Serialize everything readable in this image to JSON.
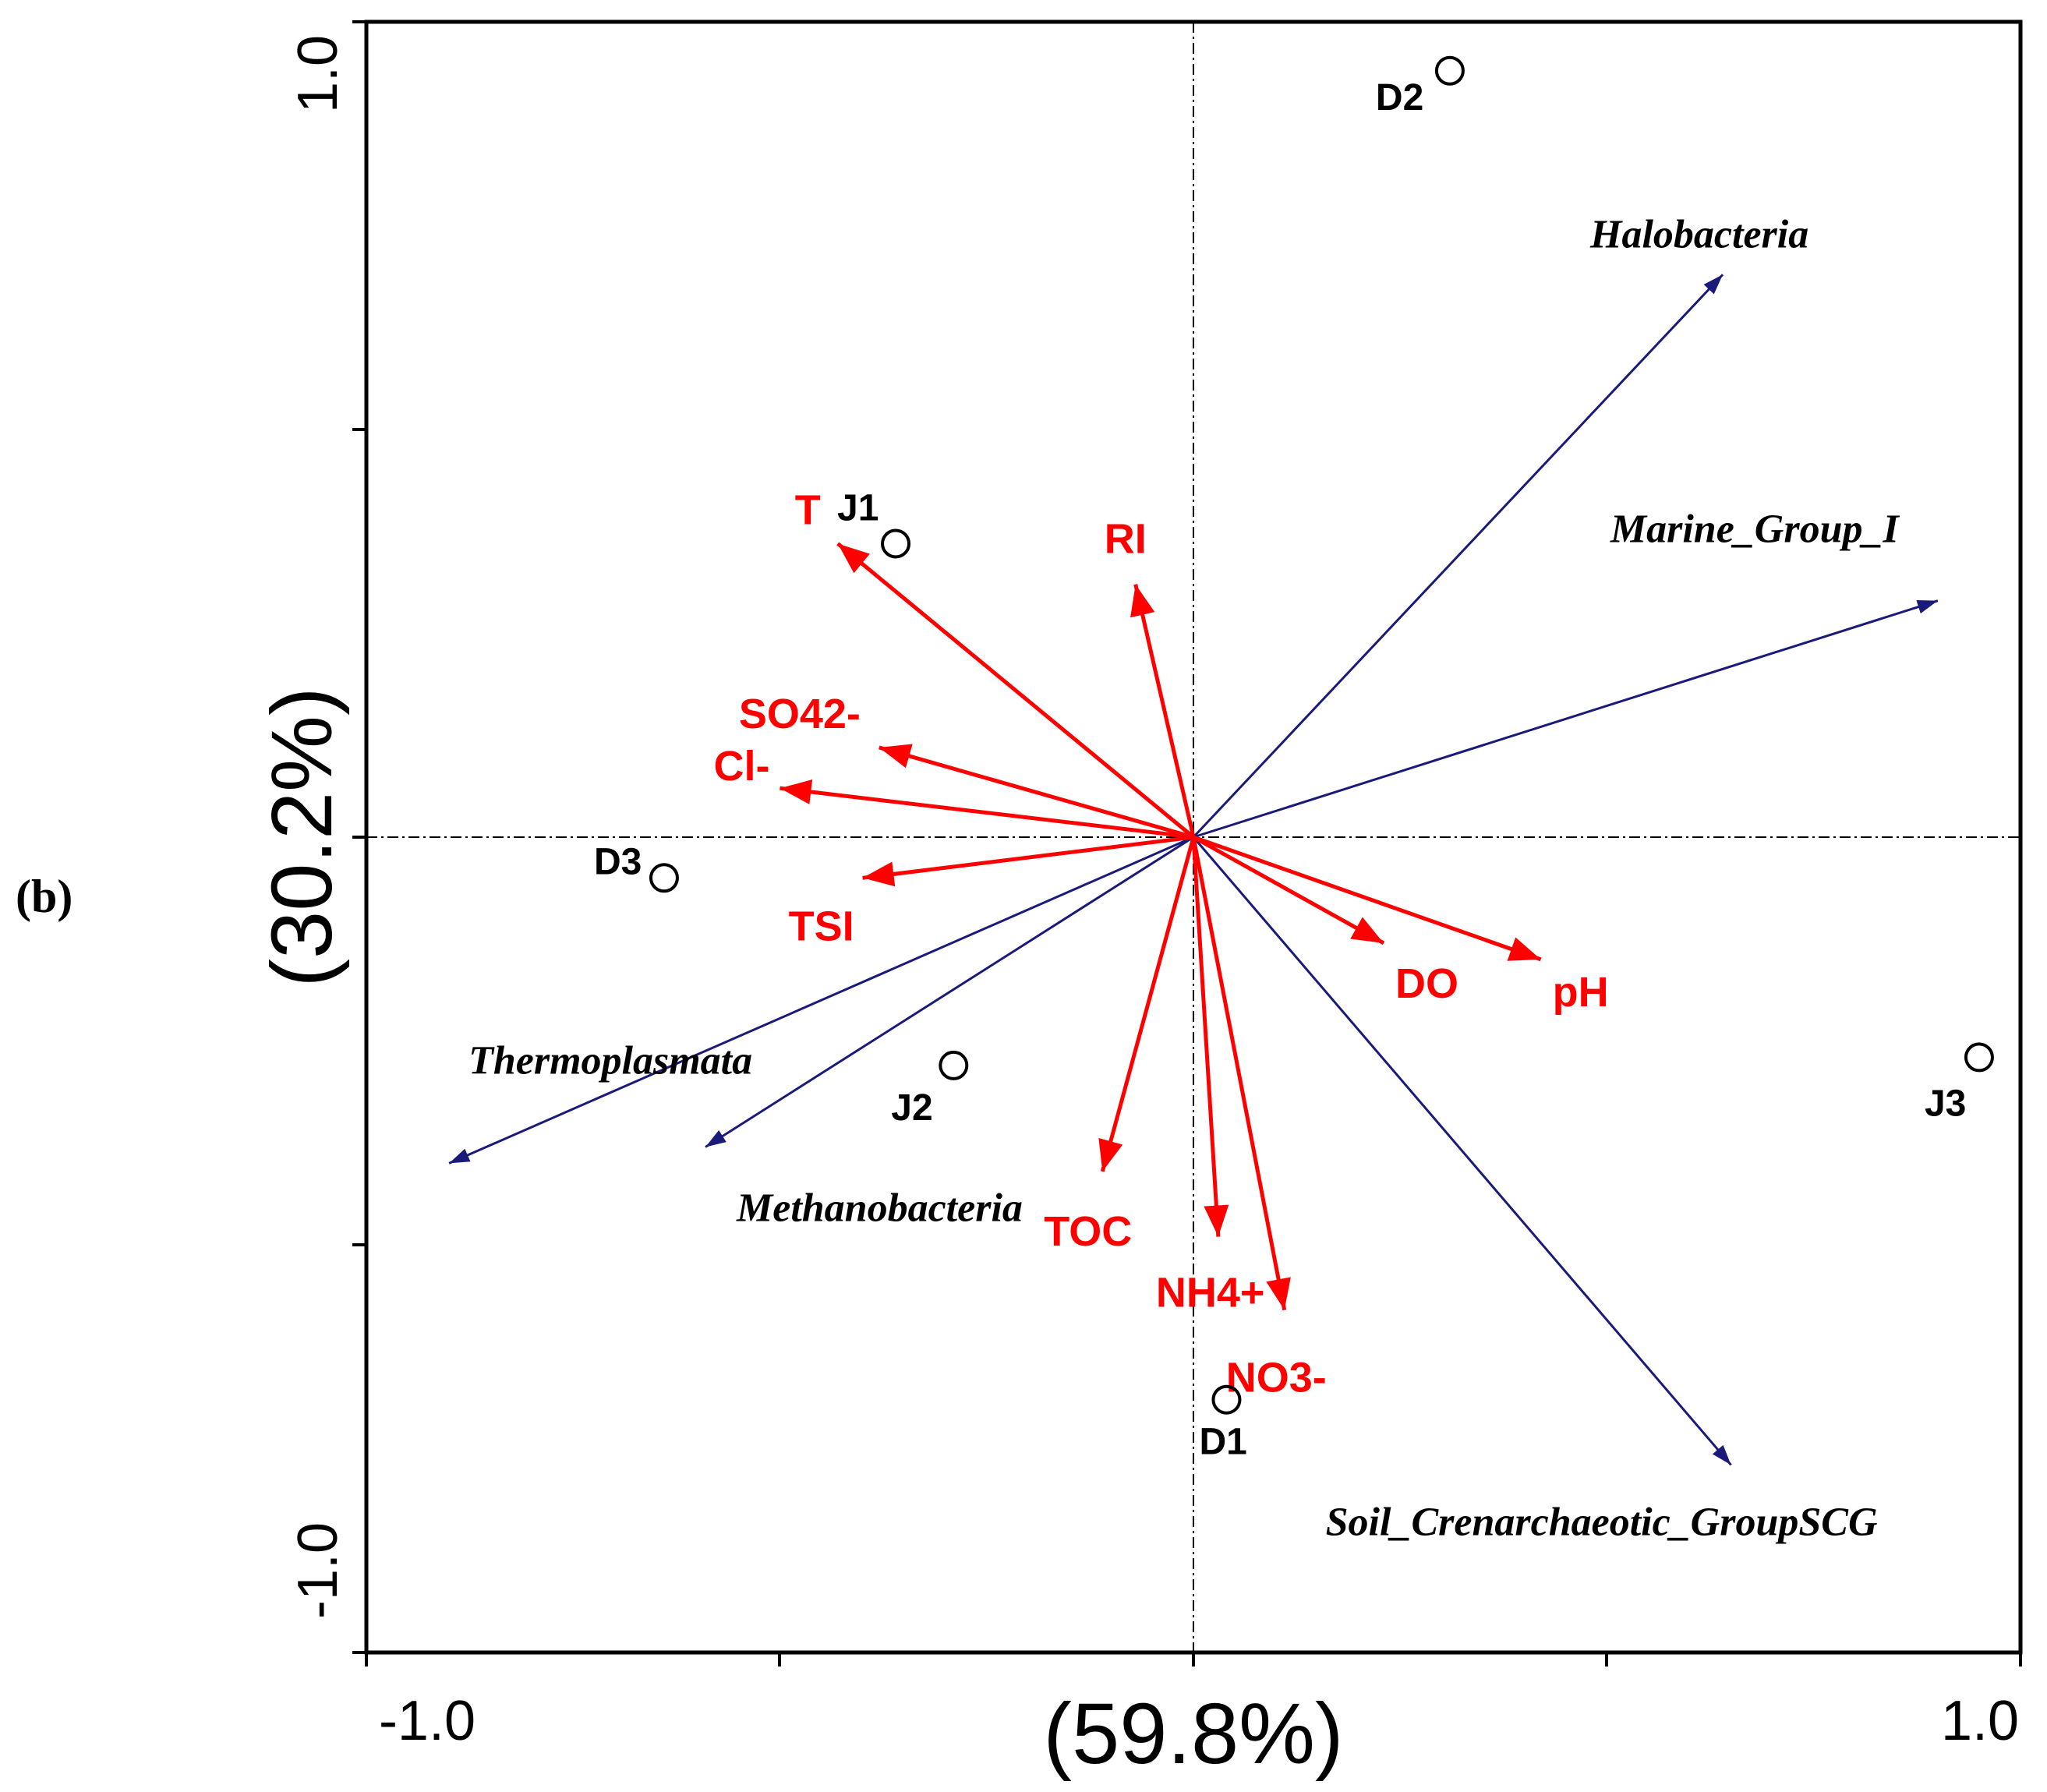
{
  "chart_data": {
    "type": "scatter",
    "title": "",
    "panel_label": "(b)",
    "xlabel": "(59.8%)",
    "ylabel": "(30.2%)",
    "xlim": [
      -1.0,
      1.0
    ],
    "ylim": [
      -1.0,
      1.0
    ],
    "x_tick_labels": [
      "-1.0",
      "1.0"
    ],
    "y_tick_labels": [
      "-1.0",
      "1.0"
    ],
    "grid": false,
    "colors": {
      "env": "#ff0000",
      "species": "#1a1a7a",
      "site": "#000000"
    },
    "env_vectors": [
      {
        "name": "T",
        "x": -0.43,
        "y": 0.36
      },
      {
        "name": "RI",
        "x": -0.07,
        "y": 0.31
      },
      {
        "name": "SO42-",
        "x": -0.38,
        "y": 0.11
      },
      {
        "name": "Cl-",
        "x": -0.5,
        "y": 0.06
      },
      {
        "name": "TSI",
        "x": -0.4,
        "y": -0.05
      },
      {
        "name": "DO",
        "x": 0.23,
        "y": -0.13
      },
      {
        "name": "pH",
        "x": 0.42,
        "y": -0.15
      },
      {
        "name": "TOC",
        "x": -0.11,
        "y": -0.41
      },
      {
        "name": "NH4+",
        "x": 0.03,
        "y": -0.49
      },
      {
        "name": "NO3-",
        "x": 0.11,
        "y": -0.58
      }
    ],
    "species_vectors": [
      {
        "name": "Halobacteria",
        "x": 0.64,
        "y": 0.69
      },
      {
        "name": "Marine_Group_I",
        "x": 0.9,
        "y": 0.29
      },
      {
        "name": "Thermoplasmata",
        "x": -0.9,
        "y": -0.4
      },
      {
        "name": "Methanobacteria",
        "x": -0.59,
        "y": -0.38
      },
      {
        "name": "Soil_Crenarchaeotic_GroupSCG",
        "x": 0.65,
        "y": -0.77
      }
    ],
    "sites": [
      {
        "name": "D2",
        "x": 0.31,
        "y": 0.94
      },
      {
        "name": "J1",
        "x": -0.36,
        "y": 0.36
      },
      {
        "name": "D3",
        "x": -0.64,
        "y": -0.05
      },
      {
        "name": "J2",
        "x": -0.29,
        "y": -0.28
      },
      {
        "name": "J3",
        "x": 0.95,
        "y": -0.27
      },
      {
        "name": "D1",
        "x": 0.04,
        "y": -0.69
      }
    ]
  }
}
